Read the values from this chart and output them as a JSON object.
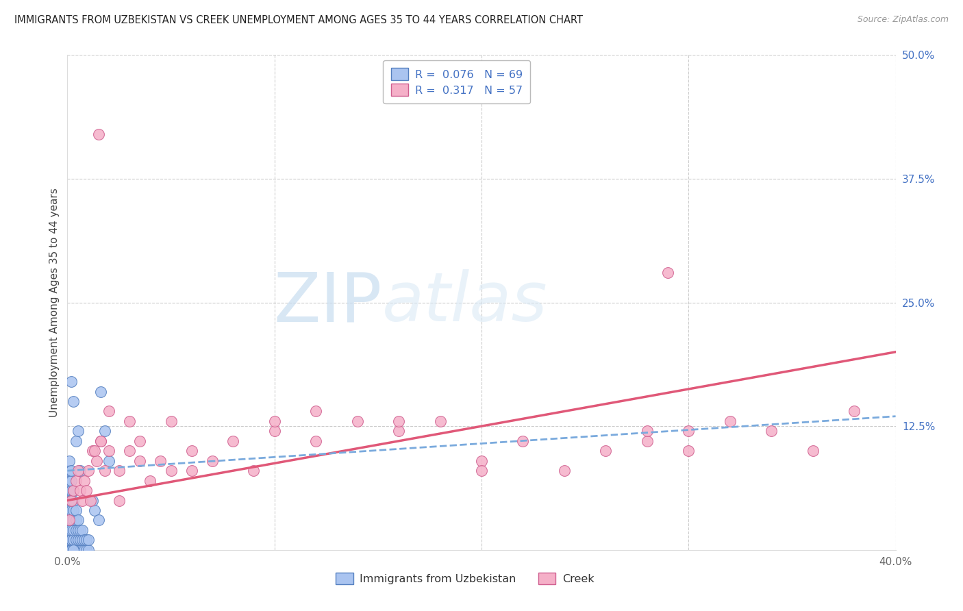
{
  "title": "IMMIGRANTS FROM UZBEKISTAN VS CREEK UNEMPLOYMENT AMONG AGES 35 TO 44 YEARS CORRELATION CHART",
  "source": "Source: ZipAtlas.com",
  "ylabel": "Unemployment Among Ages 35 to 44 years",
  "xlim": [
    0.0,
    0.4
  ],
  "ylim": [
    0.0,
    0.5
  ],
  "blue_color": "#aac4f0",
  "blue_edge": "#5580c0",
  "pink_color": "#f5b0c8",
  "pink_edge": "#d06090",
  "trend_blue_color": "#7aaadd",
  "trend_pink_color": "#e05878",
  "watermark_zip": "ZIP",
  "watermark_atlas": "atlas",
  "background": "#ffffff",
  "grid_color": "#cccccc",
  "title_color": "#222222",
  "source_color": "#999999",
  "ylabel_color": "#444444",
  "right_tick_color": "#4472c4",
  "bottom_tick_color": "#666666",
  "pink_trend_x0": 0.0,
  "pink_trend_y0": 0.05,
  "pink_trend_x1": 0.4,
  "pink_trend_y1": 0.2,
  "blue_trend_x0": 0.0,
  "blue_trend_y0": 0.08,
  "blue_trend_x1": 0.4,
  "blue_trend_y1": 0.135,
  "blue_x": [
    0.001,
    0.001,
    0.001,
    0.001,
    0.001,
    0.001,
    0.001,
    0.001,
    0.001,
    0.001,
    0.002,
    0.002,
    0.002,
    0.002,
    0.002,
    0.002,
    0.002,
    0.002,
    0.002,
    0.003,
    0.003,
    0.003,
    0.003,
    0.003,
    0.003,
    0.003,
    0.004,
    0.004,
    0.004,
    0.004,
    0.004,
    0.005,
    0.005,
    0.005,
    0.005,
    0.006,
    0.006,
    0.006,
    0.007,
    0.007,
    0.007,
    0.008,
    0.008,
    0.009,
    0.009,
    0.01,
    0.01,
    0.012,
    0.013,
    0.015,
    0.016,
    0.018,
    0.02,
    0.002,
    0.003,
    0.004,
    0.005,
    0.006,
    0.001,
    0.001,
    0.001,
    0.002,
    0.002,
    0.002,
    0.002,
    0.002,
    0.003,
    0.003
  ],
  "blue_y": [
    0.0,
    0.01,
    0.02,
    0.03,
    0.04,
    0.05,
    0.06,
    0.07,
    0.08,
    0.09,
    0.0,
    0.01,
    0.02,
    0.03,
    0.04,
    0.05,
    0.06,
    0.07,
    0.08,
    0.0,
    0.01,
    0.02,
    0.03,
    0.04,
    0.05,
    0.06,
    0.0,
    0.01,
    0.02,
    0.03,
    0.04,
    0.0,
    0.01,
    0.02,
    0.03,
    0.0,
    0.01,
    0.02,
    0.0,
    0.01,
    0.02,
    0.0,
    0.01,
    0.0,
    0.01,
    0.0,
    0.01,
    0.05,
    0.04,
    0.03,
    0.16,
    0.12,
    0.09,
    0.17,
    0.15,
    0.11,
    0.12,
    0.08,
    0.0,
    0.0,
    0.0,
    0.0,
    0.0,
    0.0,
    0.0,
    0.0,
    0.0,
    0.0
  ],
  "pink_x": [
    0.001,
    0.002,
    0.003,
    0.004,
    0.005,
    0.006,
    0.007,
    0.008,
    0.009,
    0.01,
    0.012,
    0.014,
    0.016,
    0.018,
    0.02,
    0.025,
    0.03,
    0.035,
    0.04,
    0.045,
    0.05,
    0.06,
    0.07,
    0.08,
    0.09,
    0.1,
    0.12,
    0.14,
    0.16,
    0.18,
    0.2,
    0.22,
    0.24,
    0.26,
    0.28,
    0.3,
    0.32,
    0.34,
    0.36,
    0.38,
    0.015,
    0.016,
    0.011,
    0.013,
    0.02,
    0.025,
    0.03,
    0.035,
    0.05,
    0.06,
    0.1,
    0.12,
    0.16,
    0.2,
    0.28,
    0.3,
    0.29
  ],
  "pink_y": [
    0.03,
    0.05,
    0.06,
    0.07,
    0.08,
    0.06,
    0.05,
    0.07,
    0.06,
    0.08,
    0.1,
    0.09,
    0.11,
    0.08,
    0.1,
    0.08,
    0.1,
    0.09,
    0.07,
    0.09,
    0.08,
    0.1,
    0.09,
    0.11,
    0.08,
    0.12,
    0.11,
    0.13,
    0.12,
    0.13,
    0.09,
    0.11,
    0.08,
    0.1,
    0.11,
    0.12,
    0.13,
    0.12,
    0.1,
    0.14,
    0.42,
    0.11,
    0.05,
    0.1,
    0.14,
    0.05,
    0.13,
    0.11,
    0.13,
    0.08,
    0.13,
    0.14,
    0.13,
    0.08,
    0.12,
    0.1,
    0.28
  ]
}
